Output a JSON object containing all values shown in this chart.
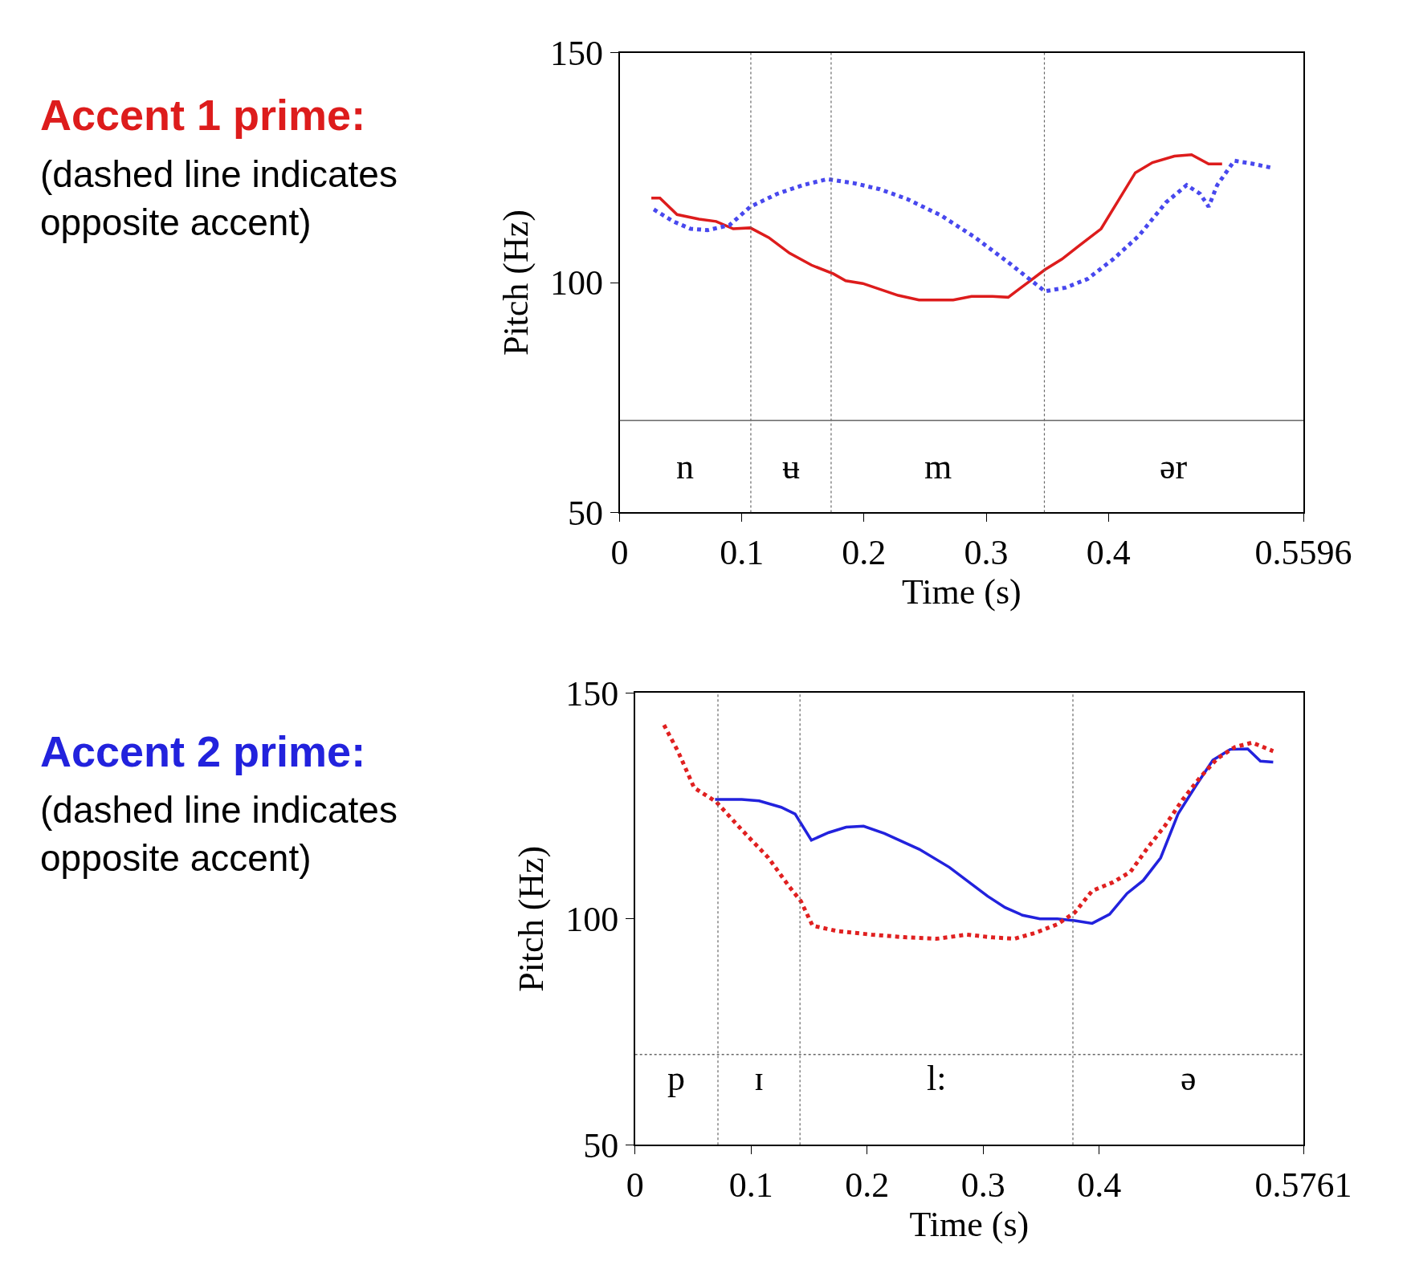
{
  "chart_data": [
    {
      "type": "line",
      "title": "Accent 1 prime:",
      "subtitle": "(dashed line indicates opposite accent)",
      "xlabel": "Time (s)",
      "ylabel": "Pitch (Hz)",
      "xlim": [
        0,
        0.5596
      ],
      "ylim": [
        50,
        150
      ],
      "xticks": [
        0,
        0.1,
        0.2,
        0.3,
        0.4,
        0.5596
      ],
      "yticks": [
        50,
        100,
        150
      ],
      "ref_lines": [
        {
          "axis": "y",
          "value": 70
        },
        {
          "axis": "x",
          "value": 0.1074
        },
        {
          "axis": "x",
          "value": 0.1731
        },
        {
          "axis": "x",
          "value": 0.3476
        }
      ],
      "annotations": [
        "n",
        "ʉ",
        "m",
        "ər"
      ],
      "series": [
        {
          "color": "#dd1c1c",
          "line_style": "solid",
          "x": [
            0.026,
            0.033,
            0.047,
            0.065,
            0.079,
            0.093,
            0.107,
            0.122,
            0.139,
            0.157,
            0.175,
            0.185,
            0.199,
            0.228,
            0.245,
            0.273,
            0.288,
            0.305,
            0.318,
            0.334,
            0.348,
            0.362,
            0.376,
            0.394,
            0.408,
            0.422,
            0.436,
            0.454,
            0.468,
            0.482,
            0.493
          ],
          "values": [
            118.4,
            118.4,
            114.8,
            113.8,
            113.3,
            111.7,
            111.9,
            109.8,
            106.4,
            103.8,
            101.9,
            100.4,
            99.8,
            97.2,
            96.2,
            96.2,
            97.0,
            97.0,
            96.8,
            100.0,
            102.8,
            105.1,
            108.0,
            111.7,
            117.8,
            123.9,
            126.1,
            127.5,
            127.8,
            125.8,
            125.8
          ]
        },
        {
          "color": "#4848ee",
          "line_style": "dotted",
          "x": [
            0.028,
            0.044,
            0.058,
            0.072,
            0.09,
            0.107,
            0.129,
            0.15,
            0.17,
            0.192,
            0.213,
            0.235,
            0.263,
            0.291,
            0.319,
            0.348,
            0.365,
            0.383,
            0.404,
            0.425,
            0.447,
            0.464,
            0.475,
            0.482,
            0.489,
            0.503,
            0.517,
            0.533
          ],
          "values": [
            115.9,
            113.3,
            111.7,
            111.4,
            112.5,
            116.5,
            119.3,
            121.2,
            122.5,
            121.6,
            120.3,
            118.2,
            114.6,
            109.8,
            104.2,
            98.1,
            98.9,
            100.8,
            105.1,
            110.2,
            117.4,
            121.2,
            119.3,
            116.5,
            121.2,
            126.5,
            125.9,
            125.0
          ]
        }
      ]
    },
    {
      "type": "line",
      "title": "Accent 2 prime:",
      "subtitle": "(dashed line indicates opposite accent)",
      "xlabel": "Time (s)",
      "ylabel": "Pitch (Hz)",
      "xlim": [
        0,
        0.5761
      ],
      "ylim": [
        50,
        150
      ],
      "xticks": [
        0,
        0.1,
        0.2,
        0.3,
        0.4,
        0.5761
      ],
      "yticks": [
        50,
        100,
        150
      ],
      "ref_lines": [
        {
          "axis": "y",
          "value": 70,
          "line_style": "dotted"
        },
        {
          "axis": "x",
          "value": 0.0715
        },
        {
          "axis": "x",
          "value": 0.1422
        },
        {
          "axis": "x",
          "value": 0.3774
        }
      ],
      "annotations": [
        "p",
        "ɪ",
        "l:",
        "ə"
      ],
      "series": [
        {
          "color": "#2222dd",
          "line_style": "solid",
          "x": [
            0.069,
            0.092,
            0.107,
            0.126,
            0.138,
            0.152,
            0.167,
            0.182,
            0.197,
            0.215,
            0.245,
            0.271,
            0.29,
            0.304,
            0.319,
            0.334,
            0.349,
            0.364,
            0.379,
            0.394,
            0.409,
            0.424,
            0.438,
            0.453,
            0.468,
            0.483,
            0.498,
            0.513,
            0.528,
            0.539,
            0.55
          ],
          "values": [
            126.4,
            126.4,
            126.1,
            124.7,
            123.2,
            117.4,
            119.1,
            120.3,
            120.5,
            118.9,
            115.4,
            111.4,
            107.7,
            105.0,
            102.5,
            100.8,
            100.0,
            100.0,
            99.6,
            99.0,
            101.0,
            105.6,
            108.5,
            113.5,
            123.2,
            129.3,
            135.1,
            137.5,
            137.6,
            134.9,
            134.7
          ]
        },
        {
          "color": "#e02020",
          "line_style": "dotted",
          "x": [
            0.025,
            0.037,
            0.051,
            0.07,
            0.092,
            0.115,
            0.133,
            0.143,
            0.153,
            0.174,
            0.204,
            0.234,
            0.26,
            0.286,
            0.308,
            0.327,
            0.345,
            0.364,
            0.379,
            0.394,
            0.412,
            0.427,
            0.442,
            0.457,
            0.472,
            0.487,
            0.502,
            0.517,
            0.532,
            0.55
          ],
          "values": [
            142.9,
            137.1,
            129.0,
            125.9,
            119.7,
            113.5,
            107.1,
            103.9,
            98.5,
            97.3,
            96.5,
            95.9,
            95.6,
            96.5,
            95.9,
            95.6,
            96.9,
            98.8,
            101.4,
            106.2,
            108.1,
            110.4,
            115.8,
            120.7,
            126.4,
            131.3,
            135.5,
            138.0,
            139.0,
            137.1
          ]
        }
      ]
    }
  ]
}
